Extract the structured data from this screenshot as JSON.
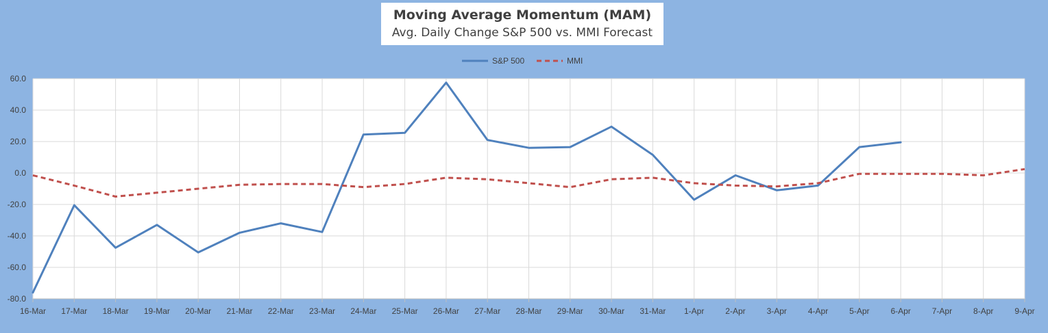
{
  "chart_data": {
    "type": "line",
    "title": "Moving Average Momentum (MAM)",
    "subtitle": "Avg. Daily Change S&P 500 vs. MMI Forecast",
    "categories": [
      "16-Mar",
      "17-Mar",
      "18-Mar",
      "19-Mar",
      "20-Mar",
      "21-Mar",
      "22-Mar",
      "23-Mar",
      "24-Mar",
      "25-Mar",
      "26-Mar",
      "27-Mar",
      "28-Mar",
      "29-Mar",
      "30-Mar",
      "31-Mar",
      "1-Apr",
      "2-Apr",
      "3-Apr",
      "4-Apr",
      "5-Apr",
      "6-Apr",
      "7-Apr",
      "8-Apr",
      "9-Apr"
    ],
    "ylim": [
      -80,
      60
    ],
    "yticks": [
      "60.0",
      "40.0",
      "20.0",
      "0.0",
      "-20.0",
      "-40.0",
      "-60.0",
      "-80.0"
    ],
    "ytick_values": [
      60,
      40,
      20,
      0,
      -20,
      -40,
      -60,
      -80
    ],
    "grid": true,
    "legend_position": "top-center",
    "series": [
      {
        "name": "S&P 500",
        "color": "#4f81bd",
        "dash": "solid",
        "values": [
          -76,
          -20.5,
          -47.5,
          -33,
          -50.5,
          -38,
          -32,
          -37.5,
          24.5,
          25.5,
          57.5,
          21,
          16,
          16.5,
          29.5,
          11.5,
          -17,
          -1.5,
          -11,
          -8,
          16.5,
          19.5,
          null,
          null,
          null
        ]
      },
      {
        "name": "MMI",
        "color": "#c0504d",
        "dash": "dashed",
        "values": [
          -1.5,
          -8,
          -15,
          -12.5,
          -10,
          -7.5,
          -7,
          -7,
          -9,
          -7,
          -3,
          -4,
          -6.5,
          -9,
          -4,
          -3,
          -6.5,
          -8,
          -8.5,
          -6.5,
          -0.5,
          -0.5,
          -0.5,
          -1.5,
          2.5
        ]
      }
    ]
  }
}
